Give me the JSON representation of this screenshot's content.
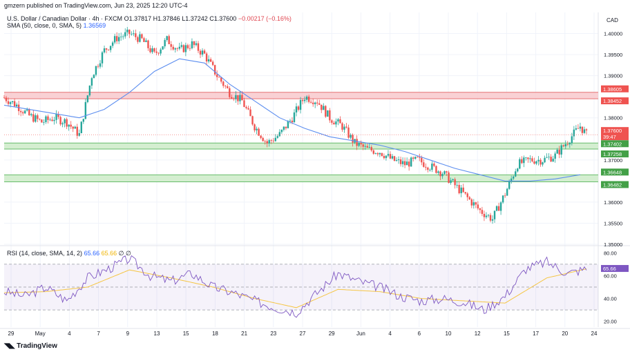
{
  "header": {
    "publisher": "gmzern published on TradingView.com, Jun 23, 2025 12:20 UTC-4",
    "symbol": "U.S. Dollar / Canadian Dollar · 4h · FXCM",
    "open": "O1.37817",
    "high": "H1.37846",
    "low": "L1.37242",
    "close": "C1.37600",
    "change": "−0.00217 (−0.16%)",
    "sma_label": "SMA (50, close, 0, SMA, 5)",
    "sma_value": "1.36569",
    "currency": "CAD"
  },
  "rsi_legend": {
    "label": "RSI (14, close, SMA, 14, 2)",
    "rsi_value": "65.66",
    "ma_value": "65.66",
    "extra": "∅ ∅"
  },
  "footer": {
    "brand": "TradingView"
  },
  "colors": {
    "up": "#26a69a",
    "down": "#ef5350",
    "sma": "#5b8def",
    "rsi": "#7e57c2",
    "rsi_ma": "#f5c542",
    "resistance_zone": "#f8c9cc",
    "support_zone": "#cdebc8"
  },
  "chart_data": [
    {
      "type": "candlestick",
      "title": "U.S. Dollar / Canadian Dollar · 4h · FXCM",
      "y_ticks": [
        "1.40000",
        "1.39500",
        "1.39000",
        "1.38000",
        "1.37000",
        "1.36000",
        "1.35500",
        "1.35000"
      ],
      "y_range": [
        1.35,
        1.405
      ],
      "x_ticks": [
        "29",
        "May",
        "4",
        "7",
        "9",
        "13",
        "15",
        "18",
        "21",
        "23",
        "27",
        "29",
        "Jun",
        "4",
        "6",
        "10",
        "12",
        "15",
        "17",
        "20",
        "24"
      ],
      "price_labels": [
        {
          "value": "1.38605",
          "kind": "resistance"
        },
        {
          "value": "1.38452",
          "kind": "resistance"
        },
        {
          "value": "1.37600",
          "kind": "last"
        },
        {
          "value": "39:47",
          "kind": "countdown"
        },
        {
          "value": "1.37402",
          "kind": "support"
        },
        {
          "value": "1.37258",
          "kind": "support"
        },
        {
          "value": "1.36648",
          "kind": "support"
        },
        {
          "value": "1.36482",
          "kind": "support"
        }
      ],
      "zones": [
        {
          "from": 1.38452,
          "to": 1.38605,
          "kind": "resistance"
        },
        {
          "from": 1.37258,
          "to": 1.37402,
          "kind": "support"
        },
        {
          "from": 1.36482,
          "to": 1.36648,
          "kind": "support"
        }
      ],
      "close_path": [
        [
          0,
          1.3848
        ],
        [
          6,
          1.383
        ],
        [
          12,
          1.3805
        ],
        [
          18,
          1.379
        ],
        [
          24,
          1.38
        ],
        [
          30,
          1.379
        ],
        [
          36,
          1.376
        ],
        [
          42,
          1.39
        ],
        [
          48,
          1.396
        ],
        [
          54,
          1.399
        ],
        [
          60,
          1.4
        ],
        [
          66,
          1.3985
        ],
        [
          72,
          1.395
        ],
        [
          78,
          1.3985
        ],
        [
          84,
          1.396
        ],
        [
          90,
          1.3975
        ],
        [
          96,
          1.395
        ],
        [
          102,
          1.39
        ],
        [
          108,
          1.386
        ],
        [
          114,
          1.384
        ],
        [
          120,
          1.378
        ],
        [
          126,
          1.374
        ],
        [
          132,
          1.376
        ],
        [
          138,
          1.38
        ],
        [
          144,
          1.385
        ],
        [
          150,
          1.384
        ],
        [
          156,
          1.38
        ],
        [
          162,
          1.378
        ],
        [
          168,
          1.374
        ],
        [
          174,
          1.3725
        ],
        [
          180,
          1.372
        ],
        [
          186,
          1.37
        ],
        [
          192,
          1.369
        ],
        [
          198,
          1.37
        ],
        [
          204,
          1.3685
        ],
        [
          210,
          1.367
        ],
        [
          216,
          1.364
        ],
        [
          222,
          1.361
        ],
        [
          228,
          1.358
        ],
        [
          234,
          1.356
        ],
        [
          240,
          1.362
        ],
        [
          246,
          1.369
        ],
        [
          252,
          1.37
        ],
        [
          258,
          1.37
        ],
        [
          264,
          1.371
        ],
        [
          270,
          1.3745
        ],
        [
          276,
          1.378
        ],
        [
          279,
          1.376
        ]
      ],
      "sma_path": [
        [
          0,
          1.383
        ],
        [
          24,
          1.381
        ],
        [
          36,
          1.38
        ],
        [
          48,
          1.382
        ],
        [
          60,
          1.386
        ],
        [
          72,
          1.391
        ],
        [
          84,
          1.394
        ],
        [
          96,
          1.393
        ],
        [
          108,
          1.388
        ],
        [
          120,
          1.384
        ],
        [
          132,
          1.38
        ],
        [
          144,
          1.3775
        ],
        [
          156,
          1.3755
        ],
        [
          168,
          1.3745
        ],
        [
          180,
          1.3735
        ],
        [
          192,
          1.372
        ],
        [
          204,
          1.37
        ],
        [
          216,
          1.368
        ],
        [
          228,
          1.3665
        ],
        [
          240,
          1.365
        ],
        [
          252,
          1.365
        ],
        [
          264,
          1.3655
        ],
        [
          276,
          1.3665
        ]
      ]
    },
    {
      "type": "line",
      "title": "RSI (14, close, SMA, 14, 2)",
      "y_ticks": [
        "80.00",
        "60.00",
        "40.00",
        "20.00"
      ],
      "y_range": [
        15,
        85
      ],
      "bands": [
        30,
        50,
        70
      ],
      "series": [
        {
          "name": "RSI",
          "points": [
            [
              0,
              46
            ],
            [
              10,
              42
            ],
            [
              20,
              50
            ],
            [
              30,
              38
            ],
            [
              40,
              58
            ],
            [
              50,
              66
            ],
            [
              60,
              75
            ],
            [
              70,
              60
            ],
            [
              80,
              55
            ],
            [
              90,
              62
            ],
            [
              100,
              50
            ],
            [
              110,
              45
            ],
            [
              120,
              38
            ],
            [
              130,
              32
            ],
            [
              140,
              28
            ],
            [
              150,
              45
            ],
            [
              160,
              62
            ],
            [
              170,
              55
            ],
            [
              180,
              50
            ],
            [
              190,
              42
            ],
            [
              200,
              38
            ],
            [
              210,
              40
            ],
            [
              220,
              37
            ],
            [
              230,
              30
            ],
            [
              240,
              42
            ],
            [
              250,
              66
            ],
            [
              260,
              72
            ],
            [
              270,
              62
            ],
            [
              279,
              66
            ]
          ]
        },
        {
          "name": "RSI-based MA",
          "points": [
            [
              0,
              45
            ],
            [
              20,
              46
            ],
            [
              40,
              50
            ],
            [
              60,
              65
            ],
            [
              80,
              58
            ],
            [
              100,
              50
            ],
            [
              120,
              40
            ],
            [
              140,
              32
            ],
            [
              160,
              48
            ],
            [
              180,
              46
            ],
            [
              200,
              40
            ],
            [
              220,
              38
            ],
            [
              240,
              36
            ],
            [
              260,
              58
            ],
            [
              279,
              66
            ]
          ]
        }
      ]
    }
  ]
}
